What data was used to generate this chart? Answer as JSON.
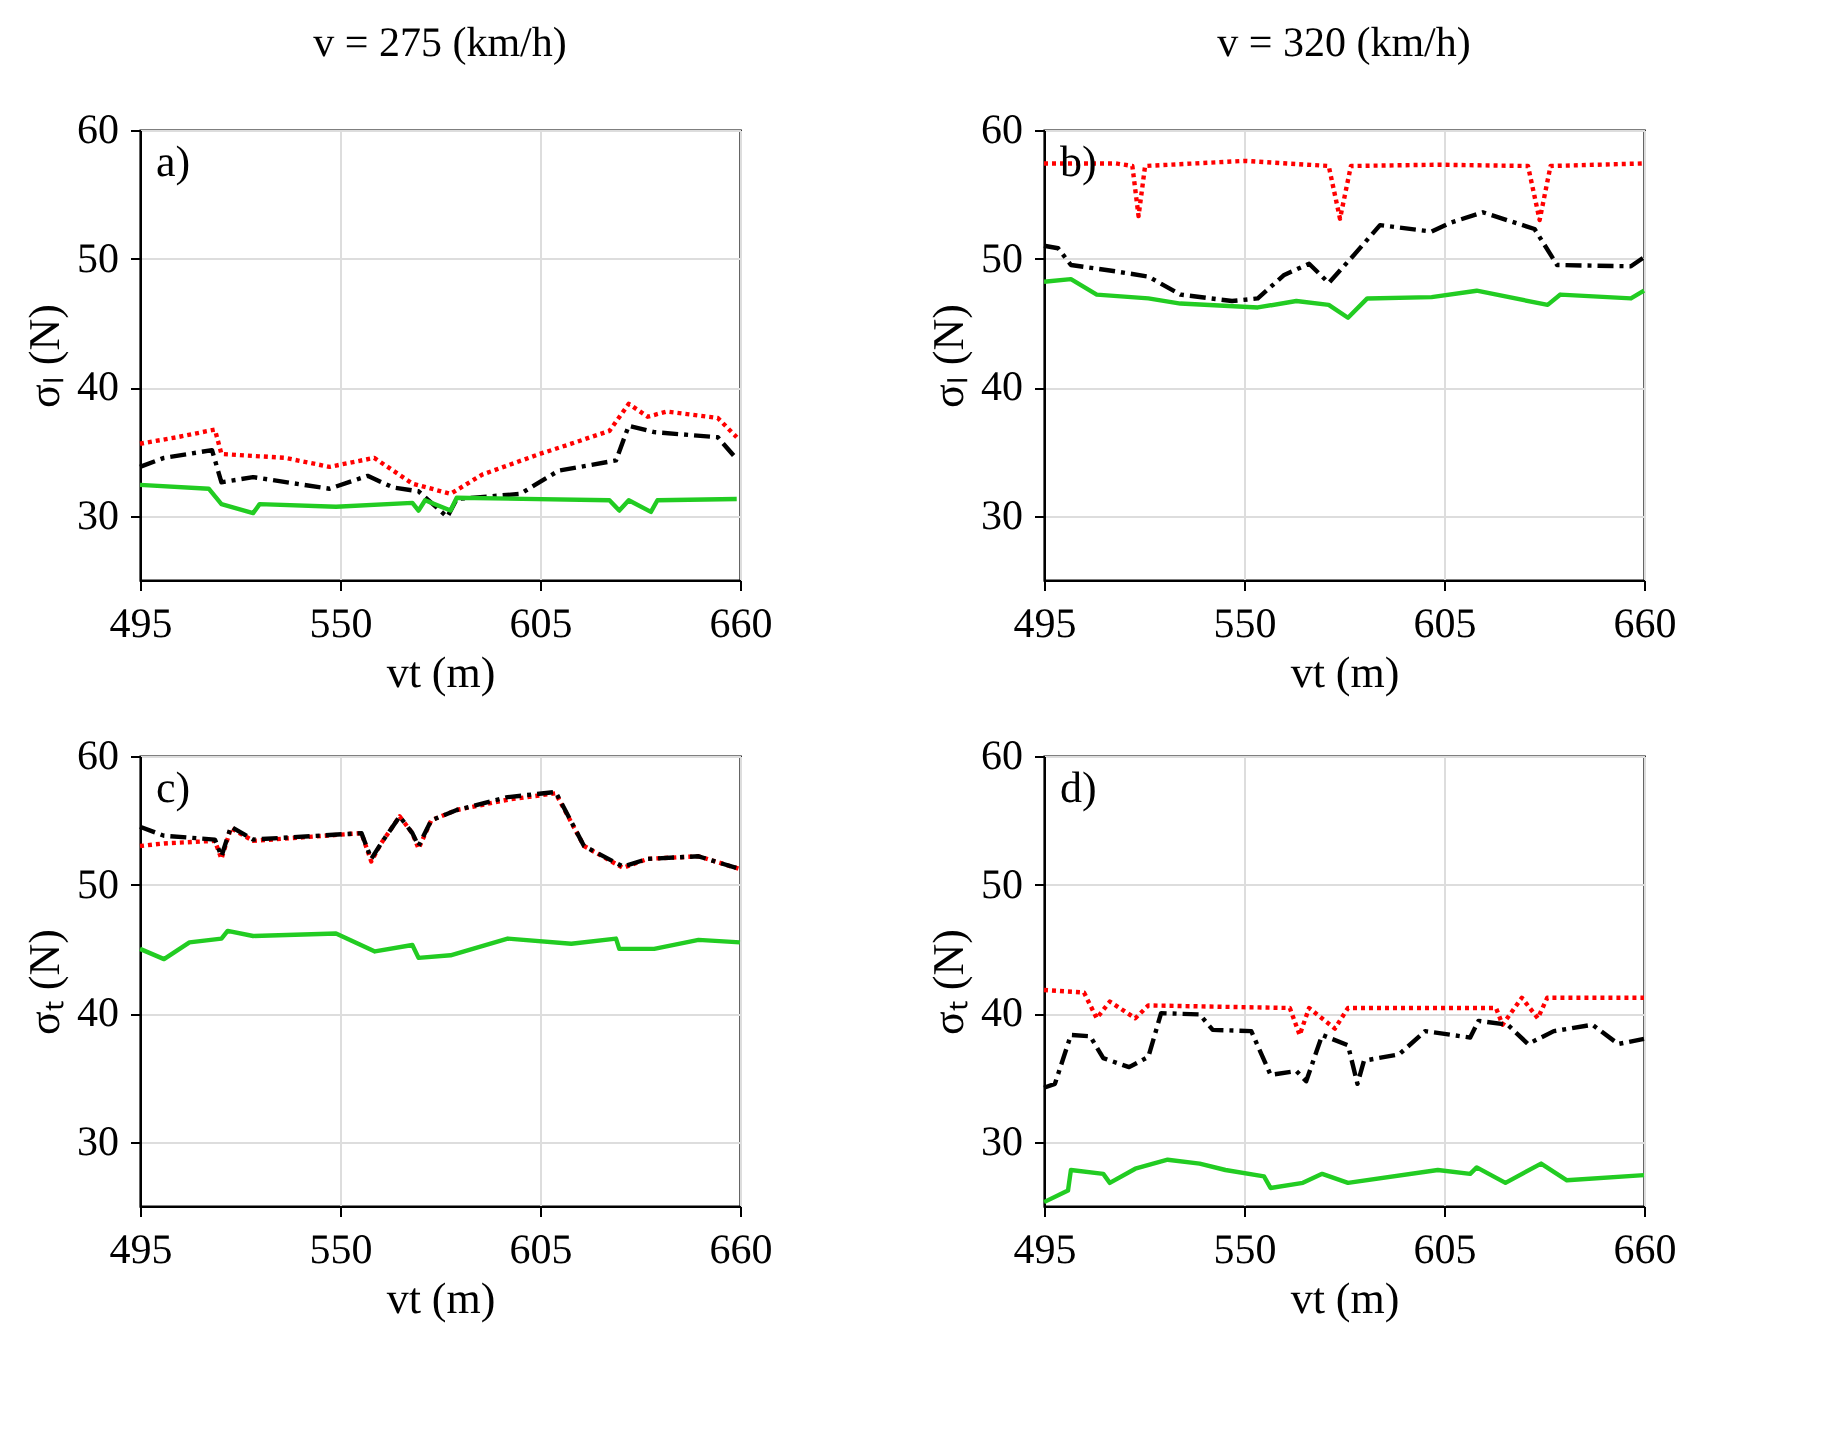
{
  "chart_data": [
    {
      "type": "line",
      "title": "v = 275 (km/h)",
      "xlabel": "vt (m)",
      "ylabel": "σₗ (N)",
      "xlim": [
        495,
        660
      ],
      "xticks": [
        495,
        550,
        605,
        660
      ],
      "ylim": [
        25,
        60
      ],
      "yticks": [
        30,
        40,
        50,
        60
      ],
      "grid": true,
      "annotations": [
        "a)"
      ],
      "series": [
        {
          "color": "#ff0000",
          "line_style": "dotted",
          "x": [
            495,
            505.1,
            515.6,
            517.4,
            534.9,
            547.1,
            559.4,
            569.9,
            580.4,
            589.1,
            604.9,
            613.6,
            624.1,
            629.4,
            634.6,
            639.9,
            653.9,
            659.1
          ],
          "values": [
            35.6,
            36.1,
            36.7,
            34.8,
            34.5,
            33.8,
            34.5,
            32.5,
            31.7,
            33.2,
            34.8,
            35.6,
            36.6,
            38.7,
            37.7,
            38.1,
            37.6,
            36.1
          ]
        },
        {
          "color": "#000000",
          "line_style": "dashed",
          "x": [
            495,
            501.6,
            514.8,
            517.4,
            526.1,
            547.1,
            557.6,
            564.6,
            571.6,
            579.5,
            582.1,
            599.6,
            610.1,
            625.9,
            629.4,
            636.4,
            653.9,
            659.1
          ],
          "values": [
            33.8,
            34.5,
            35.1,
            32.6,
            33.0,
            32.1,
            33.1,
            32.2,
            31.9,
            29.9,
            31.3,
            31.7,
            33.5,
            34.3,
            37.0,
            36.5,
            36.1,
            34.4
          ]
        },
        {
          "color": "#22cc22",
          "line_style": "solid",
          "x": [
            495,
            513.9,
            517.4,
            526.1,
            527.9,
            548.9,
            569.9,
            571.6,
            573.4,
            580.4,
            582.1,
            624.1,
            626.8,
            629.4,
            635.5,
            637.3,
            659.1
          ],
          "values": [
            32.4,
            32.1,
            30.9,
            30.2,
            30.9,
            30.7,
            31.0,
            30.4,
            31.2,
            30.4,
            31.4,
            31.2,
            30.4,
            31.2,
            30.3,
            31.2,
            31.3
          ]
        }
      ]
    },
    {
      "type": "line",
      "title": "v = 320 (km/h)",
      "xlabel": "vt (m)",
      "ylabel": "σₗ (N)",
      "xlim": [
        495,
        660
      ],
      "xticks": [
        495,
        550,
        605,
        660
      ],
      "ylim": [
        25,
        60
      ],
      "yticks": [
        30,
        40,
        50,
        60
      ],
      "grid": true,
      "annotations": [
        "b)"
      ],
      "series": [
        {
          "color": "#ff0000",
          "line_style": "dotted",
          "x": [
            495,
            514.8,
            519.3,
            521.0,
            522.8,
            550.2,
            573.3,
            576.4,
            579.4,
            603.3,
            628.1,
            631.3,
            634.3,
            660
          ],
          "values": [
            57.4,
            57.4,
            57.2,
            53.3,
            57.2,
            57.6,
            57.2,
            53.1,
            57.2,
            57.3,
            57.2,
            53.0,
            57.2,
            57.4
          ]
        },
        {
          "color": "#000000",
          "line_style": "dashed",
          "x": [
            495,
            498.9,
            502.4,
            514.8,
            523.7,
            532.5,
            546.7,
            553.8,
            560.9,
            567.9,
            573.3,
            580.3,
            587.4,
            601.6,
            606.9,
            615.7,
            629.9,
            636.1,
            656.4,
            660
          ],
          "values": [
            51.0,
            50.8,
            49.5,
            49.0,
            48.6,
            47.2,
            46.7,
            46.9,
            48.7,
            49.6,
            48.1,
            50.3,
            52.6,
            52.1,
            52.8,
            53.6,
            52.3,
            49.5,
            49.4,
            50.1
          ]
        },
        {
          "color": "#22cc22",
          "line_style": "solid",
          "x": [
            495,
            502.4,
            509.5,
            523.7,
            532.5,
            553.8,
            564.4,
            573.3,
            578.6,
            583.9,
            601.6,
            614.0,
            633.5,
            637.0,
            656.4,
            660
          ],
          "values": [
            48.2,
            48.4,
            47.2,
            46.9,
            46.5,
            46.2,
            46.7,
            46.4,
            45.4,
            46.9,
            47.0,
            47.5,
            46.4,
            47.2,
            46.9,
            47.5
          ]
        }
      ]
    },
    {
      "type": "line",
      "xlabel": "vt (m)",
      "ylabel": "σₜ (N)",
      "xlim": [
        495,
        660
      ],
      "xticks": [
        495,
        550,
        605,
        660
      ],
      "ylim": [
        25,
        60
      ],
      "yticks": [
        30,
        40,
        50,
        60
      ],
      "grid": true,
      "annotations": [
        "c)"
      ],
      "series": [
        {
          "color": "#ff0000",
          "line_style": "dotted",
          "x": [
            495,
            501.6,
            515.6,
            517.4,
            520.0,
            526.1,
            555.9,
            558.6,
            561.3,
            566.4,
            569.9,
            571.6,
            575.1,
            582.1,
            596.1,
            609.3,
            617.1,
            627.8,
            634.6,
            648.6,
            660
          ],
          "values": [
            53.0,
            53.2,
            53.4,
            52.0,
            54.4,
            53.4,
            54.0,
            51.8,
            53.2,
            55.3,
            54.0,
            52.8,
            55.0,
            55.8,
            56.6,
            57.1,
            53.0,
            51.3,
            52.0,
            52.2,
            51.2
          ]
        },
        {
          "color": "#000000",
          "line_style": "dashed",
          "x": [
            495,
            501.6,
            515.6,
            517.4,
            520.0,
            526.1,
            555.9,
            558.6,
            561.3,
            566.4,
            569.9,
            571.6,
            575.1,
            582.1,
            596.1,
            609.3,
            617.1,
            627.8,
            634.6,
            648.6,
            660
          ],
          "values": [
            54.5,
            53.8,
            53.5,
            52.2,
            54.5,
            53.5,
            54.0,
            52.0,
            53.2,
            55.3,
            54.0,
            53.0,
            55.0,
            55.8,
            56.8,
            57.2,
            53.0,
            51.4,
            52.0,
            52.2,
            51.2
          ]
        },
        {
          "color": "#22cc22",
          "line_style": "solid",
          "x": [
            495,
            501.6,
            508.6,
            517.4,
            519.1,
            526.1,
            548.9,
            559.6,
            569.9,
            571.6,
            580.4,
            596.1,
            613.6,
            625.9,
            626.8,
            636.4,
            648.6,
            660
          ],
          "values": [
            45.0,
            44.2,
            45.5,
            45.8,
            46.4,
            46.0,
            46.2,
            44.8,
            45.3,
            44.3,
            44.5,
            45.8,
            45.4,
            45.8,
            45.0,
            45.0,
            45.7,
            45.5
          ]
        }
      ]
    },
    {
      "type": "line",
      "xlabel": "vt (m)",
      "ylabel": "σₜ (N)",
      "xlim": [
        495,
        660
      ],
      "xticks": [
        495,
        550,
        605,
        660
      ],
      "ylim": [
        25,
        60
      ],
      "yticks": [
        30,
        40,
        50,
        60
      ],
      "grid": true,
      "annotations": [
        "d)"
      ],
      "series": [
        {
          "color": "#ff0000",
          "line_style": "dotted",
          "x": [
            495,
            506.0,
            509.5,
            513.1,
            520.1,
            523.7,
            562.6,
            565.3,
            567.9,
            575.0,
            578.6,
            619.3,
            621.1,
            626.4,
            630.8,
            633.4,
            660
          ],
          "values": [
            41.8,
            41.6,
            39.6,
            40.9,
            39.6,
            40.6,
            40.4,
            38.3,
            40.4,
            38.8,
            40.4,
            40.4,
            39.1,
            41.2,
            39.6,
            41.2,
            41.2
          ]
        },
        {
          "color": "#000000",
          "line_style": "dashed",
          "x": [
            495,
            498.0,
            502.4,
            507.7,
            511.3,
            518.4,
            523.7,
            527.2,
            537.8,
            541.4,
            552.0,
            557.3,
            564.4,
            567.1,
            571.5,
            578.6,
            581.2,
            583.0,
            592.7,
            599.8,
            612.2,
            614.5,
            622.5,
            628.1,
            635.2,
            645.8,
            652.9,
            660
          ],
          "values": [
            34.2,
            34.5,
            38.3,
            38.2,
            36.5,
            35.8,
            36.6,
            40.0,
            39.9,
            38.7,
            38.6,
            35.2,
            35.5,
            34.7,
            38.3,
            37.5,
            34.5,
            36.3,
            36.8,
            38.6,
            38.1,
            39.4,
            39.1,
            37.6,
            38.6,
            39.1,
            37.6,
            38.0
          ]
        },
        {
          "color": "#22cc22",
          "line_style": "solid",
          "x": [
            495,
            501.6,
            502.4,
            511.3,
            513.1,
            520.1,
            529.0,
            537.8,
            544.9,
            555.5,
            557.3,
            566.2,
            571.5,
            578.6,
            603.3,
            612.2,
            614.0,
            621.9,
            631.7,
            638.8,
            660
          ],
          "values": [
            25.3,
            26.2,
            27.8,
            27.5,
            26.8,
            27.9,
            28.6,
            28.3,
            27.8,
            27.3,
            26.4,
            26.8,
            27.5,
            26.8,
            27.8,
            27.5,
            28.0,
            26.8,
            28.3,
            27.0,
            27.4
          ]
        }
      ]
    }
  ]
}
